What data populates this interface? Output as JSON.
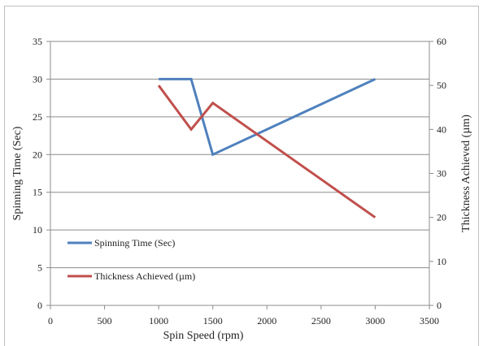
{
  "chart_data": {
    "type": "line",
    "title": "",
    "xlabel": "Spin Speed (rpm)",
    "ylabel_left": "Spinning Time (Sec)",
    "ylabel_right": "Thickness Achieved (µm)",
    "xlim": [
      0,
      3500
    ],
    "xticks": [
      0,
      500,
      1000,
      1500,
      2000,
      2500,
      3000,
      3500
    ],
    "ylim_left": [
      0,
      35
    ],
    "yticks_left": [
      0,
      5,
      10,
      15,
      20,
      25,
      30,
      35
    ],
    "ylim_right": [
      0,
      60
    ],
    "yticks_right": [
      0,
      10,
      20,
      30,
      40,
      50,
      60
    ],
    "grid": "horizontal",
    "legend_position": "left-inside",
    "series": [
      {
        "name": "Spinning Time (Sec)",
        "axis": "left",
        "color": "#4f81bd",
        "x": [
          1000,
          1300,
          1500,
          3000
        ],
        "y": [
          30,
          30,
          20,
          30
        ]
      },
      {
        "name": "Thickness Achieved (µm)",
        "axis": "right",
        "color": "#c0504d",
        "x": [
          1000,
          1300,
          1500,
          3000
        ],
        "y": [
          50,
          40,
          46,
          20
        ]
      }
    ]
  }
}
